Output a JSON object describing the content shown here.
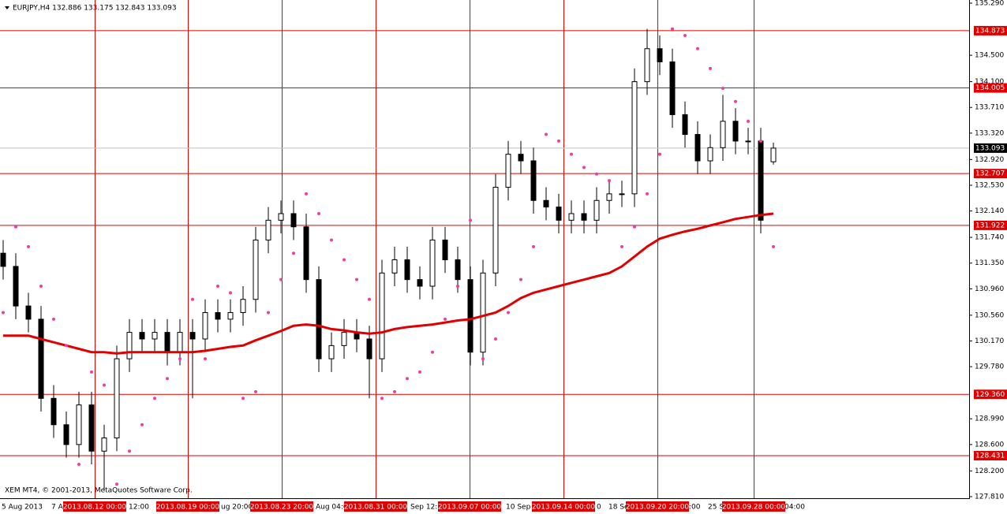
{
  "chart_data": {
    "type": "candlestick",
    "title": "EURJPY,H4  132.886 133.175 132.843 133.093",
    "footer": "XEM MT4, © 2001-2013, MetaQuotes Software Corp.",
    "open": [
      131.5,
      131.3,
      130.7,
      130.5,
      129.3,
      128.9,
      128.6,
      129.2,
      128.5,
      128.7,
      129.9,
      130.3,
      130.2,
      130.3,
      130.0,
      130.3,
      130.2,
      130.6,
      130.5,
      130.6,
      130.8,
      131.7,
      132.0,
      132.1,
      131.9,
      131.1,
      129.9,
      130.1,
      130.3,
      130.2,
      129.9,
      131.2,
      131.4,
      131.1,
      131.0,
      131.7,
      131.4,
      131.1,
      130.0,
      131.2,
      132.5,
      133.0,
      132.9,
      132.3,
      132.2,
      132.0,
      132.1,
      132.0,
      132.3,
      132.4,
      132.4,
      134.1,
      134.6,
      134.4,
      133.6,
      133.3,
      132.9,
      133.1,
      133.5,
      133.2,
      133.2,
      132.886
    ],
    "high": [
      131.7,
      131.5,
      130.9,
      130.7,
      129.5,
      129.1,
      129.4,
      129.4,
      128.9,
      130.1,
      130.5,
      130.5,
      130.5,
      130.5,
      130.5,
      130.5,
      130.8,
      130.8,
      130.8,
      131.0,
      131.9,
      132.2,
      132.3,
      132.3,
      132.1,
      131.3,
      130.3,
      130.5,
      130.5,
      130.4,
      131.4,
      131.6,
      131.6,
      131.3,
      131.9,
      131.9,
      131.6,
      131.3,
      131.4,
      132.7,
      133.2,
      133.2,
      133.1,
      132.5,
      132.4,
      132.3,
      132.3,
      132.5,
      132.6,
      132.6,
      134.3,
      134.9,
      134.8,
      134.6,
      133.8,
      133.5,
      133.3,
      133.9,
      133.7,
      133.4,
      133.4,
      133.175
    ],
    "low": [
      131.1,
      130.5,
      130.3,
      129.1,
      128.7,
      128.4,
      128.4,
      128.3,
      127.9,
      128.5,
      129.7,
      130.0,
      130.0,
      129.8,
      129.8,
      129.3,
      130.0,
      130.3,
      130.3,
      130.4,
      130.6,
      131.5,
      131.8,
      131.7,
      130.9,
      129.7,
      129.7,
      129.9,
      130.0,
      129.3,
      129.7,
      131.0,
      130.9,
      130.8,
      130.8,
      131.2,
      130.9,
      129.8,
      129.8,
      131.0,
      132.3,
      132.7,
      132.1,
      132.0,
      131.8,
      131.8,
      131.8,
      131.8,
      132.1,
      132.2,
      132.2,
      133.9,
      134.2,
      133.4,
      133.1,
      132.7,
      132.7,
      132.9,
      133.0,
      133.0,
      131.8,
      132.843
    ],
    "close": [
      131.3,
      130.7,
      130.5,
      129.3,
      128.9,
      128.6,
      129.2,
      128.5,
      128.7,
      129.9,
      130.3,
      130.2,
      130.3,
      130.0,
      130.3,
      130.2,
      130.6,
      130.5,
      130.6,
      130.8,
      131.7,
      132.0,
      132.1,
      131.9,
      131.1,
      129.9,
      130.1,
      130.3,
      130.2,
      129.9,
      131.2,
      131.4,
      131.1,
      131.0,
      131.7,
      131.4,
      131.1,
      130.0,
      131.2,
      132.5,
      133.0,
      132.9,
      132.3,
      132.2,
      132.0,
      132.1,
      132.0,
      132.3,
      132.4,
      132.4,
      134.1,
      134.6,
      134.4,
      133.6,
      133.3,
      132.9,
      133.1,
      133.5,
      133.2,
      133.2,
      132.0,
      133.093
    ],
    "candle_color": "#000000",
    "ma": {
      "color": "#e00000",
      "values": [
        130.25,
        130.25,
        130.25,
        130.2,
        130.15,
        130.1,
        130.05,
        130.0,
        130.0,
        129.98,
        130.0,
        130.0,
        130.0,
        130.0,
        130.0,
        130.0,
        130.02,
        130.05,
        130.08,
        130.1,
        130.18,
        130.25,
        130.32,
        130.4,
        130.42,
        130.4,
        130.35,
        130.33,
        130.3,
        130.28,
        130.3,
        130.35,
        130.38,
        130.4,
        130.42,
        130.45,
        130.48,
        130.5,
        130.55,
        130.6,
        130.7,
        130.82,
        130.9,
        130.95,
        131.0,
        131.05,
        131.1,
        131.15,
        131.2,
        131.3,
        131.45,
        131.6,
        131.72,
        131.78,
        131.83,
        131.87,
        131.92,
        131.97,
        132.02,
        132.05,
        132.08,
        132.1
      ]
    },
    "sar": {
      "color": "#ee3ca8",
      "values": [
        130.6,
        131.9,
        131.6,
        131.0,
        130.5,
        130.1,
        128.3,
        129.7,
        129.5,
        128.0,
        128.5,
        128.9,
        129.3,
        129.6,
        129.9,
        130.8,
        129.9,
        131.0,
        130.9,
        129.3,
        129.4,
        130.6,
        131.1,
        131.5,
        132.4,
        132.1,
        131.7,
        131.4,
        131.1,
        130.8,
        129.3,
        129.4,
        129.6,
        129.7,
        130.0,
        130.5,
        131.0,
        132.0,
        129.9,
        130.2,
        130.6,
        131.1,
        131.6,
        133.3,
        133.2,
        133.0,
        132.8,
        132.7,
        132.6,
        131.6,
        131.9,
        132.4,
        133.0,
        134.9,
        134.8,
        134.6,
        134.3,
        134.0,
        133.8,
        133.5,
        133.2,
        131.6
      ]
    },
    "xlim": [
      -0.25,
      76.5
    ],
    "ylim": [
      127.786,
      135.338
    ],
    "yticks": [
      {
        "value": 135.29,
        "label": "135.290"
      },
      {
        "value": 134.5,
        "label": "134.500"
      },
      {
        "value": 134.1,
        "label": "134.100"
      },
      {
        "value": 133.71,
        "label": "133.710"
      },
      {
        "value": 133.32,
        "label": "133.320"
      },
      {
        "value": 132.92,
        "label": "132.920"
      },
      {
        "value": 132.53,
        "label": "132.530"
      },
      {
        "value": 132.14,
        "label": "132.140"
      },
      {
        "value": 131.74,
        "label": "131.740"
      },
      {
        "value": 131.35,
        "label": "131.350"
      },
      {
        "value": 130.96,
        "label": "130.960"
      },
      {
        "value": 130.56,
        "label": "130.560"
      },
      {
        "value": 130.17,
        "label": "130.170"
      },
      {
        "value": 129.78,
        "label": "129.780"
      },
      {
        "value": 128.99,
        "label": "128.990"
      },
      {
        "value": 128.6,
        "label": "128.600"
      },
      {
        "value": 128.2,
        "label": "128.200"
      },
      {
        "value": 127.81,
        "label": "127.810"
      }
    ],
    "levels": [
      134.873,
      134.005,
      132.707,
      131.922,
      {
        "value": 129.36,
        "label": "129.360"
      },
      128.431
    ],
    "level_color": "#e00000",
    "last_price": 133.093,
    "x_labels": [
      "5 Aug 2013",
      "7 A",
      "12:00",
      "ug 20:00",
      "Aug 04:0",
      "Sep 12:",
      "10 Sep",
      "0",
      "18 Se",
      ":00",
      "25 S",
      "04:00"
    ],
    "date_markers": [
      "2013.08.12 00:00",
      "2013.08.19 00:00",
      "2013.08.23 20:00",
      "2013.08.31 00:00",
      "2013.09.07 00:00",
      "2013.09.14 00:00",
      "2013.09.20 20:00",
      "2013.09.28 00:00"
    ]
  }
}
